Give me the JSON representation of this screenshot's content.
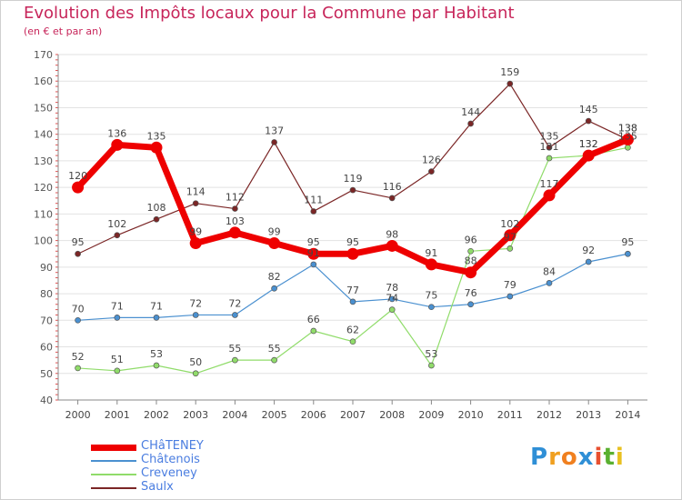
{
  "title": "Evolution des Impôts locaux pour la Commune par Habitant",
  "subtitle": "(en € et par an)",
  "logo_letters": [
    {
      "ch": "P",
      "color": "#2f8fd6"
    },
    {
      "ch": "r",
      "color": "#f0a020"
    },
    {
      "ch": "o",
      "color": "#f08020"
    },
    {
      "ch": "x",
      "color": "#2f8fd6"
    },
    {
      "ch": "i",
      "color": "#e85030"
    },
    {
      "ch": "t",
      "color": "#5ab030"
    },
    {
      "ch": "i",
      "color": "#e8c020"
    }
  ],
  "chart_data": {
    "type": "line",
    "title": "Evolution des Impôts locaux pour la Commune par Habitant",
    "subtitle": "(en € et par an)",
    "xlabel": "",
    "ylabel": "",
    "x": [
      "2000",
      "2001",
      "2002",
      "2003",
      "2004",
      "2005",
      "2006",
      "2007",
      "2008",
      "2009",
      "2010",
      "2011",
      "2012",
      "2013",
      "2014"
    ],
    "ylim": [
      40,
      170
    ],
    "yticks": [
      40,
      50,
      60,
      70,
      80,
      90,
      100,
      110,
      120,
      130,
      140,
      150,
      160,
      170
    ],
    "grid": true,
    "legend_position": "bottom-left",
    "series": [
      {
        "name": "CHâTENEY",
        "color": "#ee0000",
        "width": 7,
        "values": [
          120,
          136,
          135,
          99,
          103,
          99,
          95,
          95,
          98,
          91,
          88,
          102,
          117,
          132,
          138
        ],
        "labels": [
          "120",
          "136",
          "135",
          "99",
          "103",
          "99",
          "95",
          "95",
          "98",
          "91",
          "88",
          "102",
          "117",
          "132",
          "138"
        ]
      },
      {
        "name": "Châtenois",
        "color": "#4a90d0",
        "width": 1.2,
        "values": [
          70,
          71,
          71,
          72,
          72,
          82,
          91,
          77,
          78,
          75,
          76,
          79,
          84,
          92,
          95
        ],
        "labels": [
          "70",
          "71",
          "71",
          "72",
          "72",
          "82",
          "91",
          "77",
          "78",
          "75",
          "76",
          "79",
          "84",
          "92",
          "95"
        ]
      },
      {
        "name": "Creveney",
        "color": "#90dc6a",
        "width": 1.2,
        "values": [
          52,
          51,
          53,
          50,
          55,
          55,
          66,
          62,
          74,
          53,
          96,
          97,
          131,
          132,
          135
        ],
        "labels": [
          "52",
          "51",
          "53",
          "50",
          "55",
          "55",
          "66",
          "62",
          "74",
          "53",
          "96",
          "97",
          "131",
          "132",
          "135"
        ]
      },
      {
        "name": "Saulx",
        "color": "#7b2626",
        "width": 1.2,
        "values": [
          95,
          102,
          108,
          114,
          112,
          137,
          111,
          119,
          116,
          126,
          144,
          159,
          135,
          145,
          138
        ],
        "labels": [
          "95",
          "102",
          "108",
          "114",
          "112",
          "137",
          "111",
          "119",
          "116",
          "126",
          "144",
          "159",
          "135",
          "145",
          "138"
        ]
      }
    ]
  }
}
